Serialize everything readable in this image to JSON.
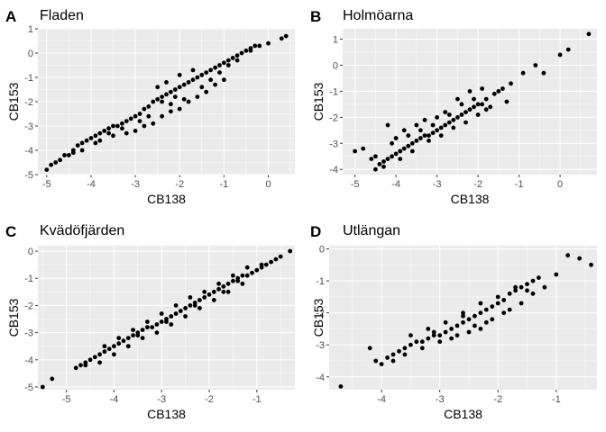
{
  "chart_data": [
    {
      "type": "scatter",
      "tag": "A",
      "title": "Fladen",
      "xlabel": "CB138",
      "ylabel": "CB153",
      "xlim": [
        -5.2,
        0.6
      ],
      "ylim": [
        -5.0,
        1.0
      ],
      "xticks": [
        -5,
        -4,
        -3,
        -2,
        -1,
        0
      ],
      "yticks": [
        -5,
        -4,
        -3,
        -2,
        -1,
        0,
        1
      ],
      "grid": true,
      "point_color": "#000000",
      "background": "#ebebeb",
      "points": [
        [
          -5.0,
          -4.8
        ],
        [
          -4.9,
          -4.6
        ],
        [
          -4.8,
          -4.5
        ],
        [
          -4.7,
          -4.4
        ],
        [
          -4.6,
          -4.2
        ],
        [
          -4.5,
          -4.2
        ],
        [
          -4.4,
          -4.0
        ],
        [
          -4.3,
          -3.8
        ],
        [
          -4.2,
          -3.7
        ],
        [
          -4.1,
          -3.6
        ],
        [
          -4.0,
          -3.5
        ],
        [
          -3.9,
          -3.4
        ],
        [
          -3.8,
          -3.3
        ],
        [
          -3.7,
          -3.2
        ],
        [
          -3.6,
          -3.1
        ],
        [
          -3.5,
          -3.0
        ],
        [
          -3.4,
          -3.0
        ],
        [
          -3.3,
          -2.9
        ],
        [
          -3.2,
          -2.8
        ],
        [
          -3.1,
          -2.7
        ],
        [
          -3.0,
          -2.6
        ],
        [
          -2.9,
          -2.5
        ],
        [
          -2.8,
          -2.3
        ],
        [
          -2.7,
          -2.2
        ],
        [
          -2.6,
          -2.0
        ],
        [
          -2.5,
          -1.9
        ],
        [
          -2.4,
          -1.8
        ],
        [
          -2.3,
          -1.7
        ],
        [
          -2.2,
          -1.6
        ],
        [
          -2.1,
          -1.5
        ],
        [
          -2.0,
          -1.4
        ],
        [
          -1.9,
          -1.3
        ],
        [
          -1.8,
          -1.2
        ],
        [
          -1.7,
          -1.1
        ],
        [
          -1.6,
          -1.0
        ],
        [
          -1.5,
          -0.9
        ],
        [
          -1.4,
          -0.8
        ],
        [
          -1.3,
          -0.7
        ],
        [
          -1.2,
          -0.6
        ],
        [
          -1.1,
          -0.5
        ],
        [
          -1.0,
          -0.4
        ],
        [
          -0.9,
          -0.3
        ],
        [
          -0.8,
          -0.2
        ],
        [
          -0.7,
          -0.1
        ],
        [
          -0.6,
          0.0
        ],
        [
          -0.5,
          0.1
        ],
        [
          -0.4,
          0.2
        ],
        [
          -0.3,
          0.3
        ],
        [
          -0.2,
          0.3
        ],
        [
          0.0,
          0.4
        ],
        [
          0.3,
          0.6
        ],
        [
          0.4,
          0.7
        ],
        [
          -3.0,
          -3.2
        ],
        [
          -2.8,
          -3.0
        ],
        [
          -2.6,
          -2.9
        ],
        [
          -2.4,
          -2.6
        ],
        [
          -2.2,
          -2.4
        ],
        [
          -2.0,
          -2.3
        ],
        [
          -1.8,
          -2.0
        ],
        [
          -1.6,
          -1.8
        ],
        [
          -1.4,
          -1.6
        ],
        [
          -1.2,
          -1.3
        ],
        [
          -1.0,
          -1.1
        ],
        [
          -2.5,
          -1.4
        ],
        [
          -2.3,
          -1.2
        ],
        [
          -2.0,
          -0.9
        ],
        [
          -1.7,
          -0.7
        ],
        [
          -3.8,
          -3.6
        ],
        [
          -3.5,
          -3.4
        ],
        [
          -3.2,
          -3.3
        ],
        [
          -4.2,
          -4.0
        ],
        [
          -2.4,
          -2.0
        ],
        [
          -2.2,
          -2.1
        ],
        [
          -1.9,
          -1.9
        ],
        [
          -1.5,
          -1.4
        ],
        [
          -0.4,
          0.1
        ],
        [
          -0.9,
          -0.5
        ],
        [
          -1.1,
          -0.8
        ],
        [
          -2.7,
          -2.6
        ],
        [
          -3.3,
          -3.1
        ],
        [
          -3.9,
          -3.7
        ],
        [
          -4.4,
          -4.1
        ],
        [
          -1.3,
          -1.1
        ],
        [
          -0.7,
          -0.3
        ],
        [
          -2.1,
          -1.8
        ],
        [
          -2.9,
          -2.8
        ],
        [
          -3.6,
          -3.3
        ]
      ]
    },
    {
      "type": "scatter",
      "tag": "B",
      "title": "Holmöarna",
      "xlabel": "CB138",
      "ylabel": "CB153",
      "xlim": [
        -5.3,
        0.9
      ],
      "ylim": [
        -4.2,
        1.4
      ],
      "xticks": [
        -5,
        -4,
        -3,
        -2,
        -1,
        0
      ],
      "yticks": [
        -4,
        -3,
        -2,
        -1,
        0,
        1
      ],
      "grid": true,
      "point_color": "#000000",
      "background": "#ebebeb",
      "points": [
        [
          -5.0,
          -3.3
        ],
        [
          -4.8,
          -3.2
        ],
        [
          -4.5,
          -4.0
        ],
        [
          -4.4,
          -3.8
        ],
        [
          -4.3,
          -3.7
        ],
        [
          -4.2,
          -3.6
        ],
        [
          -4.1,
          -3.5
        ],
        [
          -4.0,
          -3.4
        ],
        [
          -3.9,
          -3.3
        ],
        [
          -3.8,
          -3.2
        ],
        [
          -3.7,
          -3.1
        ],
        [
          -3.6,
          -3.0
        ],
        [
          -3.5,
          -2.9
        ],
        [
          -3.4,
          -2.8
        ],
        [
          -3.3,
          -2.7
        ],
        [
          -3.2,
          -2.7
        ],
        [
          -3.1,
          -2.6
        ],
        [
          -3.0,
          -2.5
        ],
        [
          -2.9,
          -2.4
        ],
        [
          -2.8,
          -2.3
        ],
        [
          -2.7,
          -2.2
        ],
        [
          -2.6,
          -2.1
        ],
        [
          -2.5,
          -2.0
        ],
        [
          -2.4,
          -1.9
        ],
        [
          -2.3,
          -1.8
        ],
        [
          -2.2,
          -1.7
        ],
        [
          -2.1,
          -1.6
        ],
        [
          -2.0,
          -1.5
        ],
        [
          -1.9,
          -1.5
        ],
        [
          -1.8,
          -1.3
        ],
        [
          -1.6,
          -1.1
        ],
        [
          -1.4,
          -0.9
        ],
        [
          -1.2,
          -0.7
        ],
        [
          -0.9,
          -0.3
        ],
        [
          -0.6,
          0.0
        ],
        [
          -0.4,
          -0.3
        ],
        [
          0.0,
          0.4
        ],
        [
          0.2,
          0.6
        ],
        [
          0.7,
          1.2
        ],
        [
          -4.2,
          -2.3
        ],
        [
          -4.0,
          -2.8
        ],
        [
          -3.8,
          -2.5
        ],
        [
          -3.5,
          -2.3
        ],
        [
          -3.3,
          -2.1
        ],
        [
          -3.0,
          -2.0
        ],
        [
          -2.8,
          -1.8
        ],
        [
          -2.5,
          -1.3
        ],
        [
          -2.2,
          -1.0
        ],
        [
          -1.5,
          -1.0
        ],
        [
          -1.7,
          -1.6
        ],
        [
          -4.6,
          -3.6
        ],
        [
          -4.3,
          -3.9
        ],
        [
          -3.9,
          -3.6
        ],
        [
          -3.6,
          -3.3
        ],
        [
          -3.2,
          -2.9
        ],
        [
          -2.9,
          -2.7
        ],
        [
          -2.6,
          -2.4
        ],
        [
          -2.3,
          -2.2
        ],
        [
          -2.0,
          -1.9
        ],
        [
          -1.8,
          -1.7
        ],
        [
          -1.3,
          -1.4
        ],
        [
          -4.1,
          -3.0
        ],
        [
          -3.7,
          -2.7
        ],
        [
          -3.4,
          -2.5
        ],
        [
          -2.7,
          -1.9
        ],
        [
          -2.4,
          -1.5
        ],
        [
          -2.1,
          -1.3
        ],
        [
          -1.9,
          -0.9
        ],
        [
          -4.5,
          -3.5
        ],
        [
          -3.1,
          -2.3
        ]
      ]
    },
    {
      "type": "scatter",
      "tag": "C",
      "title": "Kvädöfjärden",
      "xlabel": "CB138",
      "ylabel": "CB153",
      "xlim": [
        -5.6,
        -0.2
      ],
      "ylim": [
        -5.1,
        0.2
      ],
      "xticks": [
        -5,
        -4,
        -3,
        -2,
        -1
      ],
      "yticks": [
        -5,
        -4,
        -3,
        -2,
        -1,
        0
      ],
      "grid": true,
      "point_color": "#000000",
      "background": "#ebebeb",
      "points": [
        [
          -5.5,
          -5.0
        ],
        [
          -5.3,
          -4.7
        ],
        [
          -4.8,
          -4.3
        ],
        [
          -4.7,
          -4.2
        ],
        [
          -4.6,
          -4.1
        ],
        [
          -4.5,
          -4.0
        ],
        [
          -4.4,
          -3.9
        ],
        [
          -4.3,
          -3.8
        ],
        [
          -4.2,
          -3.7
        ],
        [
          -4.1,
          -3.6
        ],
        [
          -4.0,
          -3.5
        ],
        [
          -3.9,
          -3.4
        ],
        [
          -3.8,
          -3.3
        ],
        [
          -3.7,
          -3.2
        ],
        [
          -3.6,
          -3.1
        ],
        [
          -3.5,
          -3.0
        ],
        [
          -3.4,
          -2.9
        ],
        [
          -3.3,
          -2.8
        ],
        [
          -3.2,
          -2.8
        ],
        [
          -3.1,
          -2.7
        ],
        [
          -3.0,
          -2.6
        ],
        [
          -2.9,
          -2.5
        ],
        [
          -2.8,
          -2.4
        ],
        [
          -2.7,
          -2.3
        ],
        [
          -2.6,
          -2.2
        ],
        [
          -2.5,
          -2.1
        ],
        [
          -2.4,
          -2.0
        ],
        [
          -2.3,
          -1.9
        ],
        [
          -2.2,
          -1.8
        ],
        [
          -2.1,
          -1.7
        ],
        [
          -2.0,
          -1.6
        ],
        [
          -1.9,
          -1.5
        ],
        [
          -1.8,
          -1.4
        ],
        [
          -1.7,
          -1.3
        ],
        [
          -1.6,
          -1.2
        ],
        [
          -1.5,
          -1.1
        ],
        [
          -1.4,
          -1.0
        ],
        [
          -1.3,
          -0.9
        ],
        [
          -1.2,
          -0.9
        ],
        [
          -1.1,
          -0.8
        ],
        [
          -1.0,
          -0.7
        ],
        [
          -0.9,
          -0.6
        ],
        [
          -0.8,
          -0.5
        ],
        [
          -0.7,
          -0.4
        ],
        [
          -0.6,
          -0.3
        ],
        [
          -0.5,
          -0.2
        ],
        [
          -0.3,
          0.0
        ],
        [
          -4.3,
          -4.1
        ],
        [
          -4.0,
          -3.8
        ],
        [
          -3.7,
          -3.5
        ],
        [
          -3.4,
          -3.2
        ],
        [
          -3.1,
          -3.0
        ],
        [
          -2.8,
          -2.7
        ],
        [
          -2.5,
          -2.4
        ],
        [
          -2.2,
          -2.1
        ],
        [
          -1.9,
          -1.8
        ],
        [
          -1.6,
          -1.5
        ],
        [
          -1.3,
          -1.2
        ],
        [
          -4.2,
          -3.5
        ],
        [
          -3.9,
          -3.2
        ],
        [
          -3.6,
          -2.9
        ],
        [
          -3.3,
          -2.6
        ],
        [
          -3.0,
          -2.3
        ],
        [
          -2.7,
          -2.0
        ],
        [
          -2.4,
          -1.7
        ],
        [
          -2.1,
          -1.5
        ],
        [
          -1.8,
          -1.2
        ],
        [
          -1.5,
          -0.9
        ],
        [
          -1.2,
          -0.6
        ],
        [
          -4.6,
          -4.2
        ],
        [
          -3.5,
          -3.1
        ],
        [
          -2.9,
          -2.6
        ],
        [
          -2.3,
          -2.0
        ],
        [
          -1.7,
          -1.5
        ],
        [
          -1.4,
          -1.1
        ],
        [
          -0.9,
          -0.5
        ]
      ]
    },
    {
      "type": "scatter",
      "tag": "D",
      "title": "Utlängan",
      "xlabel": "CB138",
      "ylabel": "CB153",
      "xlim": [
        -4.9,
        -0.3
      ],
      "ylim": [
        -4.4,
        0.1
      ],
      "xticks": [
        -4,
        -3,
        -2,
        -1
      ],
      "yticks": [
        -4,
        -3,
        -2,
        -1,
        0
      ],
      "grid": true,
      "point_color": "#000000",
      "background": "#ebebeb",
      "points": [
        [
          -4.7,
          -4.3
        ],
        [
          -4.2,
          -3.1
        ],
        [
          -4.1,
          -3.5
        ],
        [
          -4.0,
          -3.6
        ],
        [
          -3.9,
          -3.4
        ],
        [
          -3.8,
          -3.3
        ],
        [
          -3.7,
          -3.2
        ],
        [
          -3.6,
          -3.1
        ],
        [
          -3.5,
          -3.0
        ],
        [
          -3.4,
          -2.9
        ],
        [
          -3.3,
          -2.9
        ],
        [
          -3.2,
          -2.8
        ],
        [
          -3.1,
          -2.7
        ],
        [
          -3.0,
          -2.7
        ],
        [
          -2.9,
          -2.6
        ],
        [
          -2.8,
          -2.5
        ],
        [
          -2.7,
          -2.4
        ],
        [
          -2.6,
          -2.3
        ],
        [
          -2.5,
          -2.2
        ],
        [
          -2.4,
          -2.1
        ],
        [
          -2.3,
          -2.0
        ],
        [
          -2.2,
          -1.9
        ],
        [
          -2.1,
          -1.8
        ],
        [
          -2.0,
          -1.7
        ],
        [
          -1.9,
          -1.6
        ],
        [
          -1.8,
          -1.4
        ],
        [
          -1.7,
          -1.3
        ],
        [
          -1.6,
          -1.2
        ],
        [
          -1.5,
          -1.1
        ],
        [
          -1.4,
          -1.0
        ],
        [
          -1.3,
          -0.9
        ],
        [
          -1.0,
          -0.8
        ],
        [
          -0.8,
          -0.2
        ],
        [
          -0.6,
          -0.3
        ],
        [
          -0.4,
          -0.5
        ],
        [
          -3.6,
          -3.3
        ],
        [
          -3.3,
          -3.1
        ],
        [
          -3.0,
          -2.9
        ],
        [
          -2.7,
          -2.7
        ],
        [
          -2.4,
          -2.4
        ],
        [
          -2.1,
          -2.2
        ],
        [
          -1.8,
          -1.9
        ],
        [
          -3.5,
          -2.7
        ],
        [
          -3.2,
          -2.5
        ],
        [
          -2.9,
          -2.3
        ],
        [
          -2.6,
          -2.1
        ],
        [
          -2.3,
          -1.7
        ],
        [
          -2.0,
          -1.5
        ],
        [
          -1.7,
          -1.2
        ],
        [
          -1.4,
          -1.4
        ],
        [
          -2.8,
          -2.8
        ],
        [
          -2.5,
          -2.6
        ],
        [
          -2.2,
          -2.3
        ],
        [
          -1.9,
          -2.0
        ],
        [
          -1.6,
          -1.7
        ],
        [
          -3.8,
          -3.5
        ],
        [
          -3.1,
          -2.6
        ],
        [
          -2.6,
          -2.0
        ],
        [
          -2.3,
          -2.5
        ],
        [
          -1.5,
          -1.3
        ],
        [
          -1.2,
          -1.2
        ]
      ]
    }
  ]
}
